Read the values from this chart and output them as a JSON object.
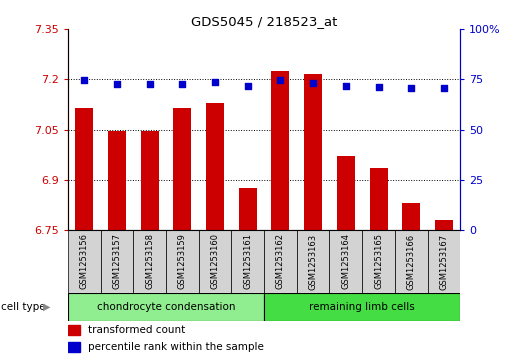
{
  "title": "GDS5045 / 218523_at",
  "samples": [
    "GSM1253156",
    "GSM1253157",
    "GSM1253158",
    "GSM1253159",
    "GSM1253160",
    "GSM1253161",
    "GSM1253162",
    "GSM1253163",
    "GSM1253164",
    "GSM1253165",
    "GSM1253166",
    "GSM1253167"
  ],
  "transformed_count": [
    7.115,
    7.046,
    7.046,
    7.115,
    7.13,
    6.875,
    7.225,
    7.215,
    6.97,
    6.935,
    6.83,
    6.78
  ],
  "percentile_rank": [
    74.5,
    72.5,
    72.5,
    72.5,
    73.5,
    71.5,
    74.5,
    73.0,
    71.5,
    71.0,
    70.5,
    70.5
  ],
  "ylim_left": [
    6.75,
    7.35
  ],
  "ylim_right": [
    0,
    100
  ],
  "yticks_left": [
    6.75,
    6.9,
    7.05,
    7.2,
    7.35
  ],
  "ytick_labels_left": [
    "6.75",
    "6.9",
    "7.05",
    "7.2",
    "7.35"
  ],
  "yticks_right": [
    0,
    25,
    50,
    75,
    100
  ],
  "ytick_labels_right": [
    "0",
    "25",
    "50",
    "75",
    "100%"
  ],
  "bar_color": "#cc0000",
  "dot_color": "#0000cc",
  "group1_label": "chondrocyte condensation",
  "group2_label": "remaining limb cells",
  "group1_count": 6,
  "group2_count": 6,
  "group1_bg": "#90ee90",
  "group2_bg": "#44dd44",
  "sample_bg": "#d3d3d3",
  "cell_type_label": "cell type",
  "legend_bar_label": "transformed count",
  "legend_dot_label": "percentile rank within the sample",
  "background_color": "#ffffff",
  "plot_bg": "#ffffff",
  "bar_baseline": 6.75,
  "grid_lines": [
    6.9,
    7.05,
    7.2
  ]
}
